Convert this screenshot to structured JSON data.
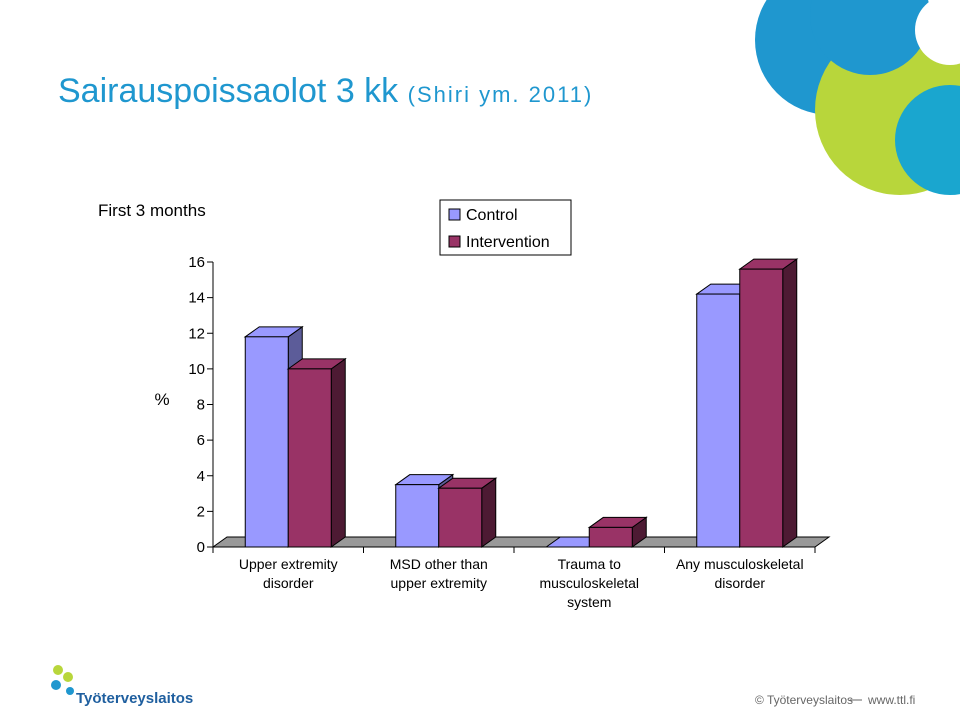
{
  "slide": {
    "title": "Sairauspoissaolot 3 kk",
    "title_note": "(Shiri ym. 2011)",
    "logo": "Työterveyslaitos",
    "copyright": "© Työterveyslaitos",
    "url": "www.ttl.fi"
  },
  "chart_data": {
    "type": "bar3d",
    "title": "First 3 months",
    "ylabel": "%",
    "categories": [
      "Upper extremity disorder",
      "MSD other than upper extremity",
      "Trauma to musculoskeletal system",
      "Any musculoskeletal disorder"
    ],
    "series": [
      {
        "name": "Control",
        "color": "#9999ff",
        "side": "#5c5c99",
        "values": [
          11.8,
          3.5,
          0,
          14.2
        ]
      },
      {
        "name": "Intervention",
        "color": "#993366",
        "side": "#4d1a33",
        "values": [
          10.0,
          3.3,
          1.1,
          15.6
        ]
      }
    ],
    "ylim": [
      0,
      16
    ],
    "yticks": [
      0,
      2,
      4,
      6,
      8,
      10,
      12,
      14,
      16
    ]
  }
}
